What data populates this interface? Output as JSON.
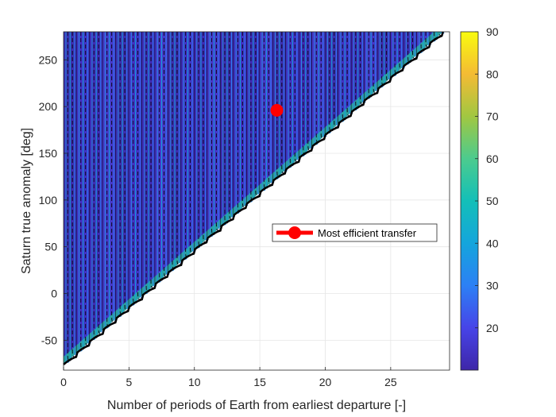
{
  "chart_data": {
    "type": "contour",
    "xlabel": "Number of periods of Earth from earliest departure  [-]",
    "ylabel": "Saturn true anomaly  [deg]",
    "xlim": [
      0,
      29.5
    ],
    "ylim": [
      -82,
      280
    ],
    "xticks": [
      0,
      5,
      10,
      15,
      20,
      25
    ],
    "yticks": [
      -50,
      0,
      50,
      100,
      150,
      200,
      250
    ],
    "grid": true,
    "boundary_line": {
      "x": [
        0,
        29
      ],
      "y": [
        -76,
        280
      ]
    },
    "band_period": 1,
    "colorbar": {
      "colormap": "parula",
      "range": [
        10,
        90
      ],
      "ticks": [
        20,
        30,
        40,
        50,
        60,
        70,
        80,
        90
      ]
    },
    "highlight": {
      "name": "Most efficient transfer",
      "x": 16.3,
      "y": 196,
      "color": "#ff0000"
    },
    "legend": {
      "location": "center-right",
      "entries": [
        "Most efficient transfer"
      ]
    }
  }
}
